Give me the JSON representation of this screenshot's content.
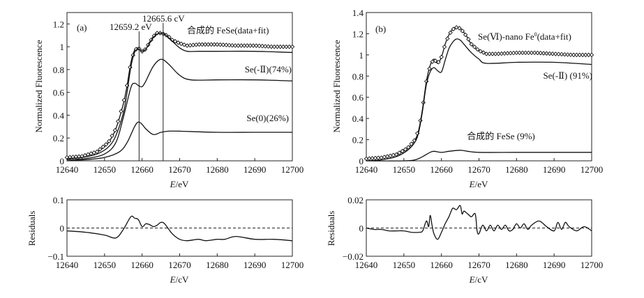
{
  "chart_data": [
    {
      "type": "line",
      "panel_label": "(a)",
      "xlabel_italic": "E",
      "xlabel_unit": "/eV",
      "ylabel": "Normalized Fluorescence",
      "xlim": [
        12640,
        12700
      ],
      "ylim": [
        0,
        1.3
      ],
      "xticks": [
        "12640",
        "12650",
        "12660",
        "12670",
        "12680",
        "12690",
        "12700"
      ],
      "yticks": [
        "0",
        "0.2",
        "0.4",
        "0.6",
        "0.8",
        "1",
        "1.2"
      ],
      "ytick_values": [
        0,
        0.2,
        0.4,
        0.6,
        0.8,
        1,
        1.2
      ],
      "annotations": [
        {
          "text": "12659.2 eV",
          "x": 12659.2
        },
        {
          "text": "12665.6 cV",
          "x": 12665.6
        }
      ],
      "series": [
        {
          "name": "合成的 FeSe(data+fit)",
          "style": "markers+line",
          "x": [
            12640,
            12644,
            12648,
            12651,
            12653,
            12655,
            12656,
            12657,
            12658,
            12659,
            12660,
            12661,
            12662,
            12663,
            12664,
            12665,
            12666,
            12667,
            12668,
            12670,
            12672,
            12675,
            12680,
            12685,
            12690,
            12695,
            12700
          ],
          "y": [
            0.03,
            0.04,
            0.08,
            0.16,
            0.28,
            0.5,
            0.66,
            0.86,
            0.97,
            0.99,
            0.96,
            0.98,
            1.04,
            1.09,
            1.12,
            1.12,
            1.11,
            1.09,
            1.06,
            1.03,
            1.01,
            1.02,
            1.02,
            1.01,
            1.01,
            1.0,
            1.0
          ]
        },
        {
          "name": "fit",
          "style": "line",
          "x": [
            12640,
            12644,
            12648,
            12651,
            12653,
            12655,
            12656,
            12657,
            12658,
            12659,
            12660,
            12661,
            12662,
            12663,
            12664,
            12665,
            12666,
            12668,
            12670,
            12672,
            12675,
            12680,
            12690,
            12700
          ],
          "y": [
            0.02,
            0.03,
            0.06,
            0.12,
            0.22,
            0.42,
            0.6,
            0.82,
            0.95,
            0.98,
            0.96,
            0.98,
            1.03,
            1.08,
            1.11,
            1.12,
            1.11,
            1.05,
            0.99,
            0.96,
            0.96,
            0.96,
            0.96,
            0.95
          ]
        },
        {
          "name": "Se(-Ⅱ)(74%)",
          "style": "line",
          "x": [
            12640,
            12645,
            12650,
            12653,
            12655,
            12657,
            12658,
            12659,
            12660,
            12661,
            12663,
            12665,
            12667,
            12670,
            12673,
            12680,
            12690,
            12700
          ],
          "y": [
            0.01,
            0.02,
            0.06,
            0.16,
            0.38,
            0.64,
            0.68,
            0.66,
            0.65,
            0.7,
            0.83,
            0.89,
            0.85,
            0.75,
            0.71,
            0.71,
            0.71,
            0.7
          ]
        },
        {
          "name": "Se(0)(26%)",
          "style": "line",
          "x": [
            12640,
            12645,
            12650,
            12654,
            12656,
            12658,
            12659,
            12660,
            12661,
            12663,
            12665,
            12667,
            12670,
            12680,
            12690,
            12700
          ],
          "y": [
            0.0,
            0.01,
            0.03,
            0.08,
            0.16,
            0.3,
            0.34,
            0.32,
            0.28,
            0.23,
            0.25,
            0.26,
            0.26,
            0.25,
            0.25,
            0.25
          ]
        }
      ],
      "labels": [
        "合成的 FeSe(data+fit)",
        "Se(-Ⅱ)(74%)",
        "Se(0)(26%)"
      ]
    },
    {
      "type": "line",
      "panel_label": "(b)",
      "xlabel_italic": "E",
      "xlabel_unit": "/eV",
      "ylabel": "Normalized Fluorescence",
      "xlim": [
        12640,
        12700
      ],
      "ylim": [
        0,
        1.4
      ],
      "xticks": [
        "12640",
        "12650",
        "12660",
        "12670",
        "12680",
        "12690",
        "12700"
      ],
      "yticks": [
        "0",
        "0.2",
        "0.4",
        "0.6",
        "0.8",
        "1",
        "1.2",
        "1.4"
      ],
      "ytick_values": [
        0,
        0.2,
        0.4,
        0.6,
        0.8,
        1,
        1.2,
        1.4
      ],
      "series": [
        {
          "name": "Se(Ⅵ)-nano Fe0(data+fit)",
          "style": "markers+line",
          "x": [
            12640,
            12644,
            12648,
            12651,
            12653,
            12654,
            12655,
            12656,
            12657,
            12658,
            12659,
            12660,
            12661,
            12662,
            12663,
            12664,
            12665,
            12666,
            12667,
            12668,
            12670,
            12672,
            12675,
            12680,
            12685,
            12690,
            12695,
            12700
          ],
          "y": [
            0.02,
            0.03,
            0.06,
            0.12,
            0.2,
            0.3,
            0.5,
            0.75,
            0.9,
            0.96,
            0.92,
            0.98,
            1.1,
            1.19,
            1.24,
            1.26,
            1.25,
            1.21,
            1.16,
            1.1,
            1.04,
            1.01,
            1.01,
            1.02,
            1.02,
            1.01,
            1.0,
            1.0
          ]
        },
        {
          "name": "Se(-Ⅱ) (91%)",
          "style": "line",
          "x": [
            12640,
            12644,
            12648,
            12651,
            12653,
            12654,
            12655,
            12656,
            12657,
            12658,
            12659,
            12660,
            12661,
            12662,
            12663,
            12664,
            12665,
            12666,
            12668,
            12670,
            12672,
            12680,
            12690,
            12700
          ],
          "y": [
            0.0,
            0.01,
            0.04,
            0.1,
            0.18,
            0.28,
            0.48,
            0.72,
            0.84,
            0.88,
            0.85,
            0.84,
            0.95,
            1.06,
            1.12,
            1.15,
            1.14,
            1.1,
            1.02,
            0.96,
            0.92,
            0.93,
            0.93,
            0.91
          ]
        },
        {
          "name": "合成的 FeSe (9%)",
          "style": "line",
          "x": [
            12640,
            12650,
            12653,
            12655,
            12657,
            12658,
            12660,
            12662,
            12665,
            12667,
            12670,
            12680,
            12690,
            12700
          ],
          "y": [
            0.0,
            0.0,
            0.01,
            0.04,
            0.08,
            0.09,
            0.08,
            0.09,
            0.1,
            0.09,
            0.08,
            0.08,
            0.08,
            0.08
          ]
        }
      ],
      "labels": [
        "Se(Ⅵ)-nano Fe",
        "0",
        "(data+fit)",
        "Se(-Ⅱ) (91%)",
        "合成的 FeSe (9%)"
      ]
    },
    {
      "type": "line",
      "ylabel": "Residuals",
      "xlabel_italic": "E",
      "xlabel_unit": "/cV",
      "xlim": [
        12640,
        12700
      ],
      "ylim": [
        -0.1,
        0.1
      ],
      "xticks": [
        "12640",
        "12650",
        "12660",
        "12670",
        "12680",
        "12690",
        "12700"
      ],
      "yticks": [
        "-0.1",
        "0",
        "0.1"
      ],
      "ytick_values": [
        -0.1,
        0,
        0.1
      ],
      "series": [
        {
          "name": "residuals-a",
          "x": [
            12640,
            12645,
            12650,
            12653,
            12655,
            12657,
            12658,
            12659,
            12660,
            12661,
            12662,
            12663,
            12664,
            12665,
            12666,
            12668,
            12670,
            12672,
            12675,
            12677,
            12680,
            12682,
            12685,
            12690,
            12695,
            12700
          ],
          "y": [
            -0.01,
            -0.015,
            -0.025,
            -0.035,
            -0.005,
            0.04,
            0.035,
            0.03,
            0.005,
            0.015,
            0.012,
            0.005,
            0.01,
            0.02,
            0.015,
            -0.02,
            -0.04,
            -0.045,
            -0.04,
            -0.045,
            -0.04,
            -0.04,
            -0.03,
            -0.04,
            -0.04,
            -0.045
          ]
        }
      ]
    },
    {
      "type": "line",
      "ylabel": "Residuals",
      "xlabel_italic": "E",
      "xlabel_unit": "/cV",
      "xlim": [
        12640,
        12700
      ],
      "ylim": [
        -0.02,
        0.02
      ],
      "xticks": [
        "12640",
        "12650",
        "12660",
        "12670",
        "12680",
        "12690",
        "12700"
      ],
      "yticks": [
        "-0.02",
        "0",
        "0.02"
      ],
      "ytick_values": [
        -0.02,
        0,
        0.02
      ],
      "series": [
        {
          "name": "residuals-b",
          "x": [
            12640,
            12642,
            12644,
            12646,
            12648,
            12650,
            12652,
            12654,
            12655,
            12656,
            12656.6,
            12657,
            12657.5,
            12658,
            12659,
            12660,
            12661,
            12662,
            12663,
            12664,
            12665,
            12665.5,
            12666,
            12667,
            12668,
            12669,
            12669.5,
            12670,
            12671,
            12672,
            12673,
            12674,
            12675,
            12676,
            12677,
            12678,
            12679,
            12680,
            12681,
            12682,
            12683,
            12684,
            12686,
            12688,
            12690,
            12691,
            12692,
            12693,
            12694,
            12696,
            12698,
            12700
          ],
          "y": [
            0,
            -0.001,
            -0.001,
            -0.002,
            -0.002,
            -0.002,
            -0.003,
            -0.003,
            -0.002,
            0.005,
            0.001,
            0.009,
            0.002,
            -0.004,
            -0.008,
            -0.003,
            0.003,
            0.008,
            0.014,
            0.013,
            0.016,
            0.01,
            0.012,
            0.01,
            0.008,
            0.01,
            -0.002,
            -0.004,
            0.002,
            -0.002,
            0.002,
            -0.002,
            0.002,
            -0.001,
            0.002,
            -0.002,
            -0.001,
            0.003,
            0.0,
            0.003,
            -0.001,
            0.002,
            0.005,
            0.001,
            -0.002,
            0.004,
            -0.001,
            0.004,
            0.001,
            -0.002,
            0.001,
            -0.002
          ]
        }
      ]
    }
  ]
}
